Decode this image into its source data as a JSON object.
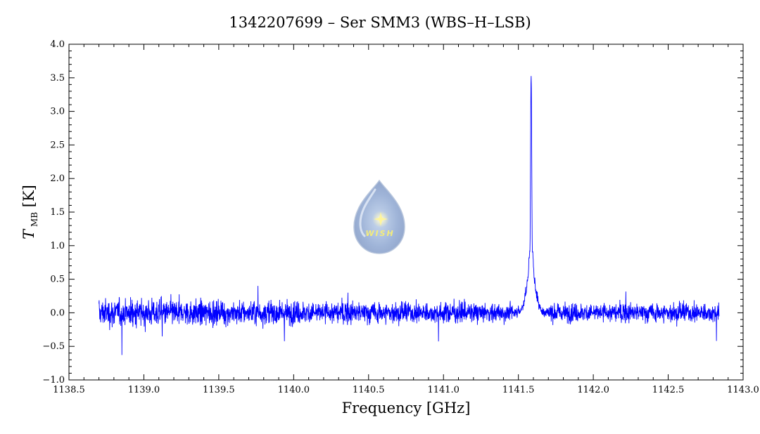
{
  "chart_data": {
    "type": "line",
    "title": "1342207699 – Ser SMM3 (WBS–H–LSB)",
    "xlabel": "Frequency [GHz]",
    "ylabel_main": "T",
    "ylabel_sub": "MB",
    "ylabel_unit": "[K]",
    "xlim": [
      1138.5,
      1143.0
    ],
    "ylim": [
      -1.0,
      4.0
    ],
    "x_ticks": [
      "1138.5",
      "1139.0",
      "1139.5",
      "1140.0",
      "1140.5",
      "1141.0",
      "1141.5",
      "1142.0",
      "1142.5",
      "1143.0"
    ],
    "y_ticks": [
      "−1.0",
      "−0.5",
      "0.0",
      "0.5",
      "1.0",
      "1.5",
      "2.0",
      "2.5",
      "3.0",
      "3.5",
      "4.0"
    ],
    "grid": false,
    "series": [
      {
        "color": "#0000ff",
        "x_start": 1138.7,
        "x_end": 1142.84,
        "baseline": 0.0,
        "noise_rms_low_freq": 0.16,
        "noise_rms_high_freq": 0.11,
        "min_value": -0.8,
        "line_center": 1141.585,
        "peak_value": 3.55,
        "line_wing_value": 0.6,
        "line_wing_range": [
          1141.54,
          1141.63
        ]
      }
    ]
  },
  "logo": {
    "text": "WISH",
    "icon": "wish-drop-icon"
  }
}
